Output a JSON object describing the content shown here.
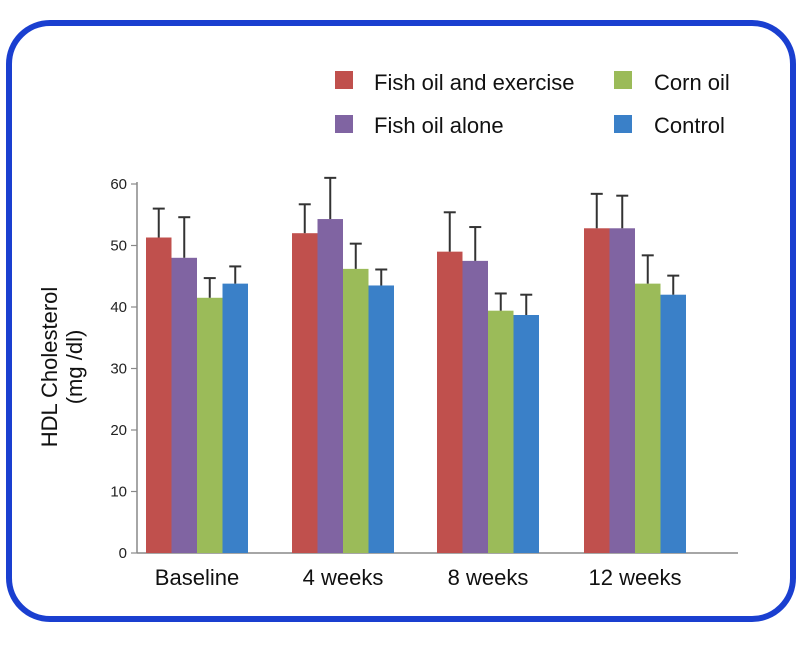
{
  "chart_data": {
    "type": "bar",
    "categories": [
      "Baseline",
      "4 weeks",
      "8 weeks",
      "12 weeks"
    ],
    "series": [
      {
        "name": "Fish oil and exercise",
        "color": "#c0504d",
        "values": [
          51.3,
          52.0,
          49.0,
          52.8
        ],
        "errors": [
          4.7,
          4.7,
          6.4,
          5.6
        ]
      },
      {
        "name": "Fish oil alone",
        "color": "#8064a2",
        "values": [
          48.0,
          54.3,
          47.5,
          52.8
        ],
        "errors": [
          6.6,
          6.7,
          5.5,
          5.3
        ]
      },
      {
        "name": "Corn oil",
        "color": "#9bbb59",
        "values": [
          41.5,
          46.2,
          39.4,
          43.8
        ],
        "errors": [
          3.2,
          4.1,
          2.8,
          4.6
        ]
      },
      {
        "name": "Control",
        "color": "#3a80c8",
        "values": [
          43.8,
          43.5,
          38.7,
          42.0
        ],
        "errors": [
          2.8,
          2.6,
          3.3,
          3.1
        ]
      }
    ],
    "ylabel_line1": "HDL Cholesterol",
    "ylabel_line2": "(mg /dl)",
    "yticks": [
      0,
      10,
      20,
      30,
      40,
      50,
      60
    ],
    "ylim": [
      0,
      60
    ],
    "grid": false,
    "legend_position": "top-right",
    "error_bars": "upper",
    "frame_color": "#1a3fd0"
  }
}
